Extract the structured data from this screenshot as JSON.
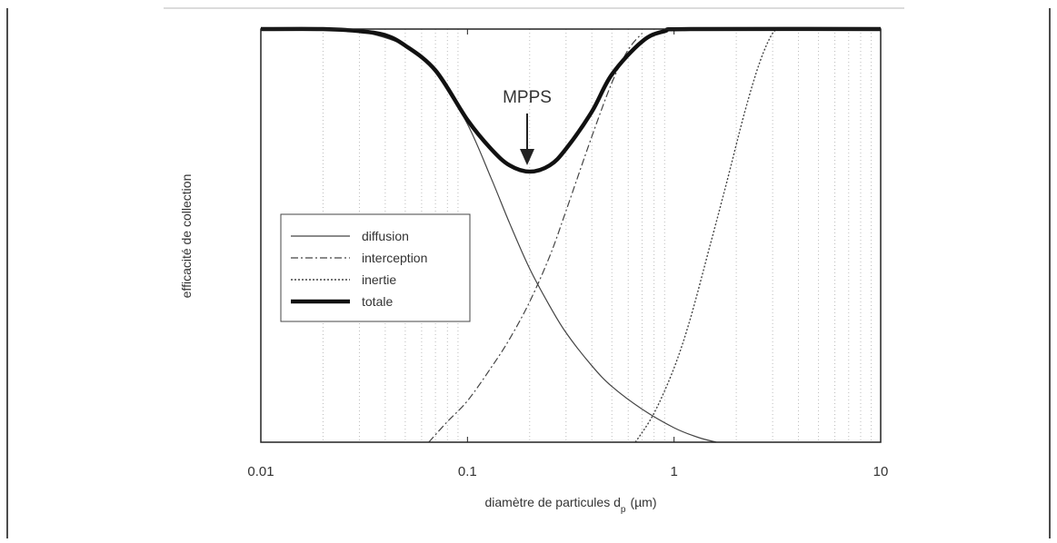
{
  "chart_data": {
    "type": "line",
    "title": "",
    "xlabel_main": "diamètre de particules d",
    "xlabel_sub": "p",
    "xlabel_unit": "(µm)",
    "ylabel": "efficacité de collection",
    "x_scale": "log",
    "xlim": [
      0.01,
      10
    ],
    "ylim": [
      0,
      1
    ],
    "x_ticks": [
      0.01,
      0.1,
      1,
      10
    ],
    "x_tick_labels": [
      "0.01",
      "0.1",
      "1",
      "10"
    ],
    "y_ticks_labeled": false,
    "grid": "vertical minor gridlines (dotted)",
    "legend_position": "left",
    "annotation": {
      "text": "MPPS",
      "x": 0.2
    },
    "series": [
      {
        "name": "diffusion",
        "style": "solid-thin",
        "x": [
          0.02,
          0.03,
          0.05,
          0.07,
          0.1,
          0.13,
          0.16,
          0.2,
          0.25,
          0.3,
          0.4,
          0.5,
          0.7,
          1.0,
          1.3,
          1.6
        ],
        "y": [
          1.0,
          0.995,
          0.96,
          0.9,
          0.77,
          0.64,
          0.53,
          0.42,
          0.33,
          0.265,
          0.185,
          0.135,
          0.08,
          0.035,
          0.012,
          0.0
        ]
      },
      {
        "name": "interception",
        "style": "dash-dot",
        "x": [
          0.065,
          0.08,
          0.1,
          0.13,
          0.16,
          0.2,
          0.25,
          0.3,
          0.4,
          0.5,
          0.6,
          0.7
        ],
        "y": [
          0.0,
          0.05,
          0.1,
          0.18,
          0.25,
          0.34,
          0.45,
          0.56,
          0.74,
          0.87,
          0.95,
          0.99
        ]
      },
      {
        "name": "inertie",
        "style": "dotted",
        "x": [
          0.65,
          0.8,
          1.0,
          1.2,
          1.5,
          1.8,
          2.2,
          2.6,
          3.0,
          3.3
        ],
        "y": [
          0.0,
          0.07,
          0.18,
          0.3,
          0.48,
          0.63,
          0.8,
          0.92,
          0.99,
          1.0
        ]
      },
      {
        "name": "totale",
        "style": "solid-thick",
        "x": [
          0.01,
          0.02,
          0.03,
          0.04,
          0.05,
          0.07,
          0.1,
          0.13,
          0.16,
          0.2,
          0.25,
          0.3,
          0.4,
          0.5,
          0.7,
          0.9,
          1.2,
          10
        ],
        "y": [
          1.0,
          1.0,
          0.995,
          0.985,
          0.96,
          0.9,
          0.78,
          0.71,
          0.67,
          0.655,
          0.67,
          0.71,
          0.8,
          0.89,
          0.97,
          0.995,
          1.0,
          1.0
        ]
      }
    ]
  }
}
